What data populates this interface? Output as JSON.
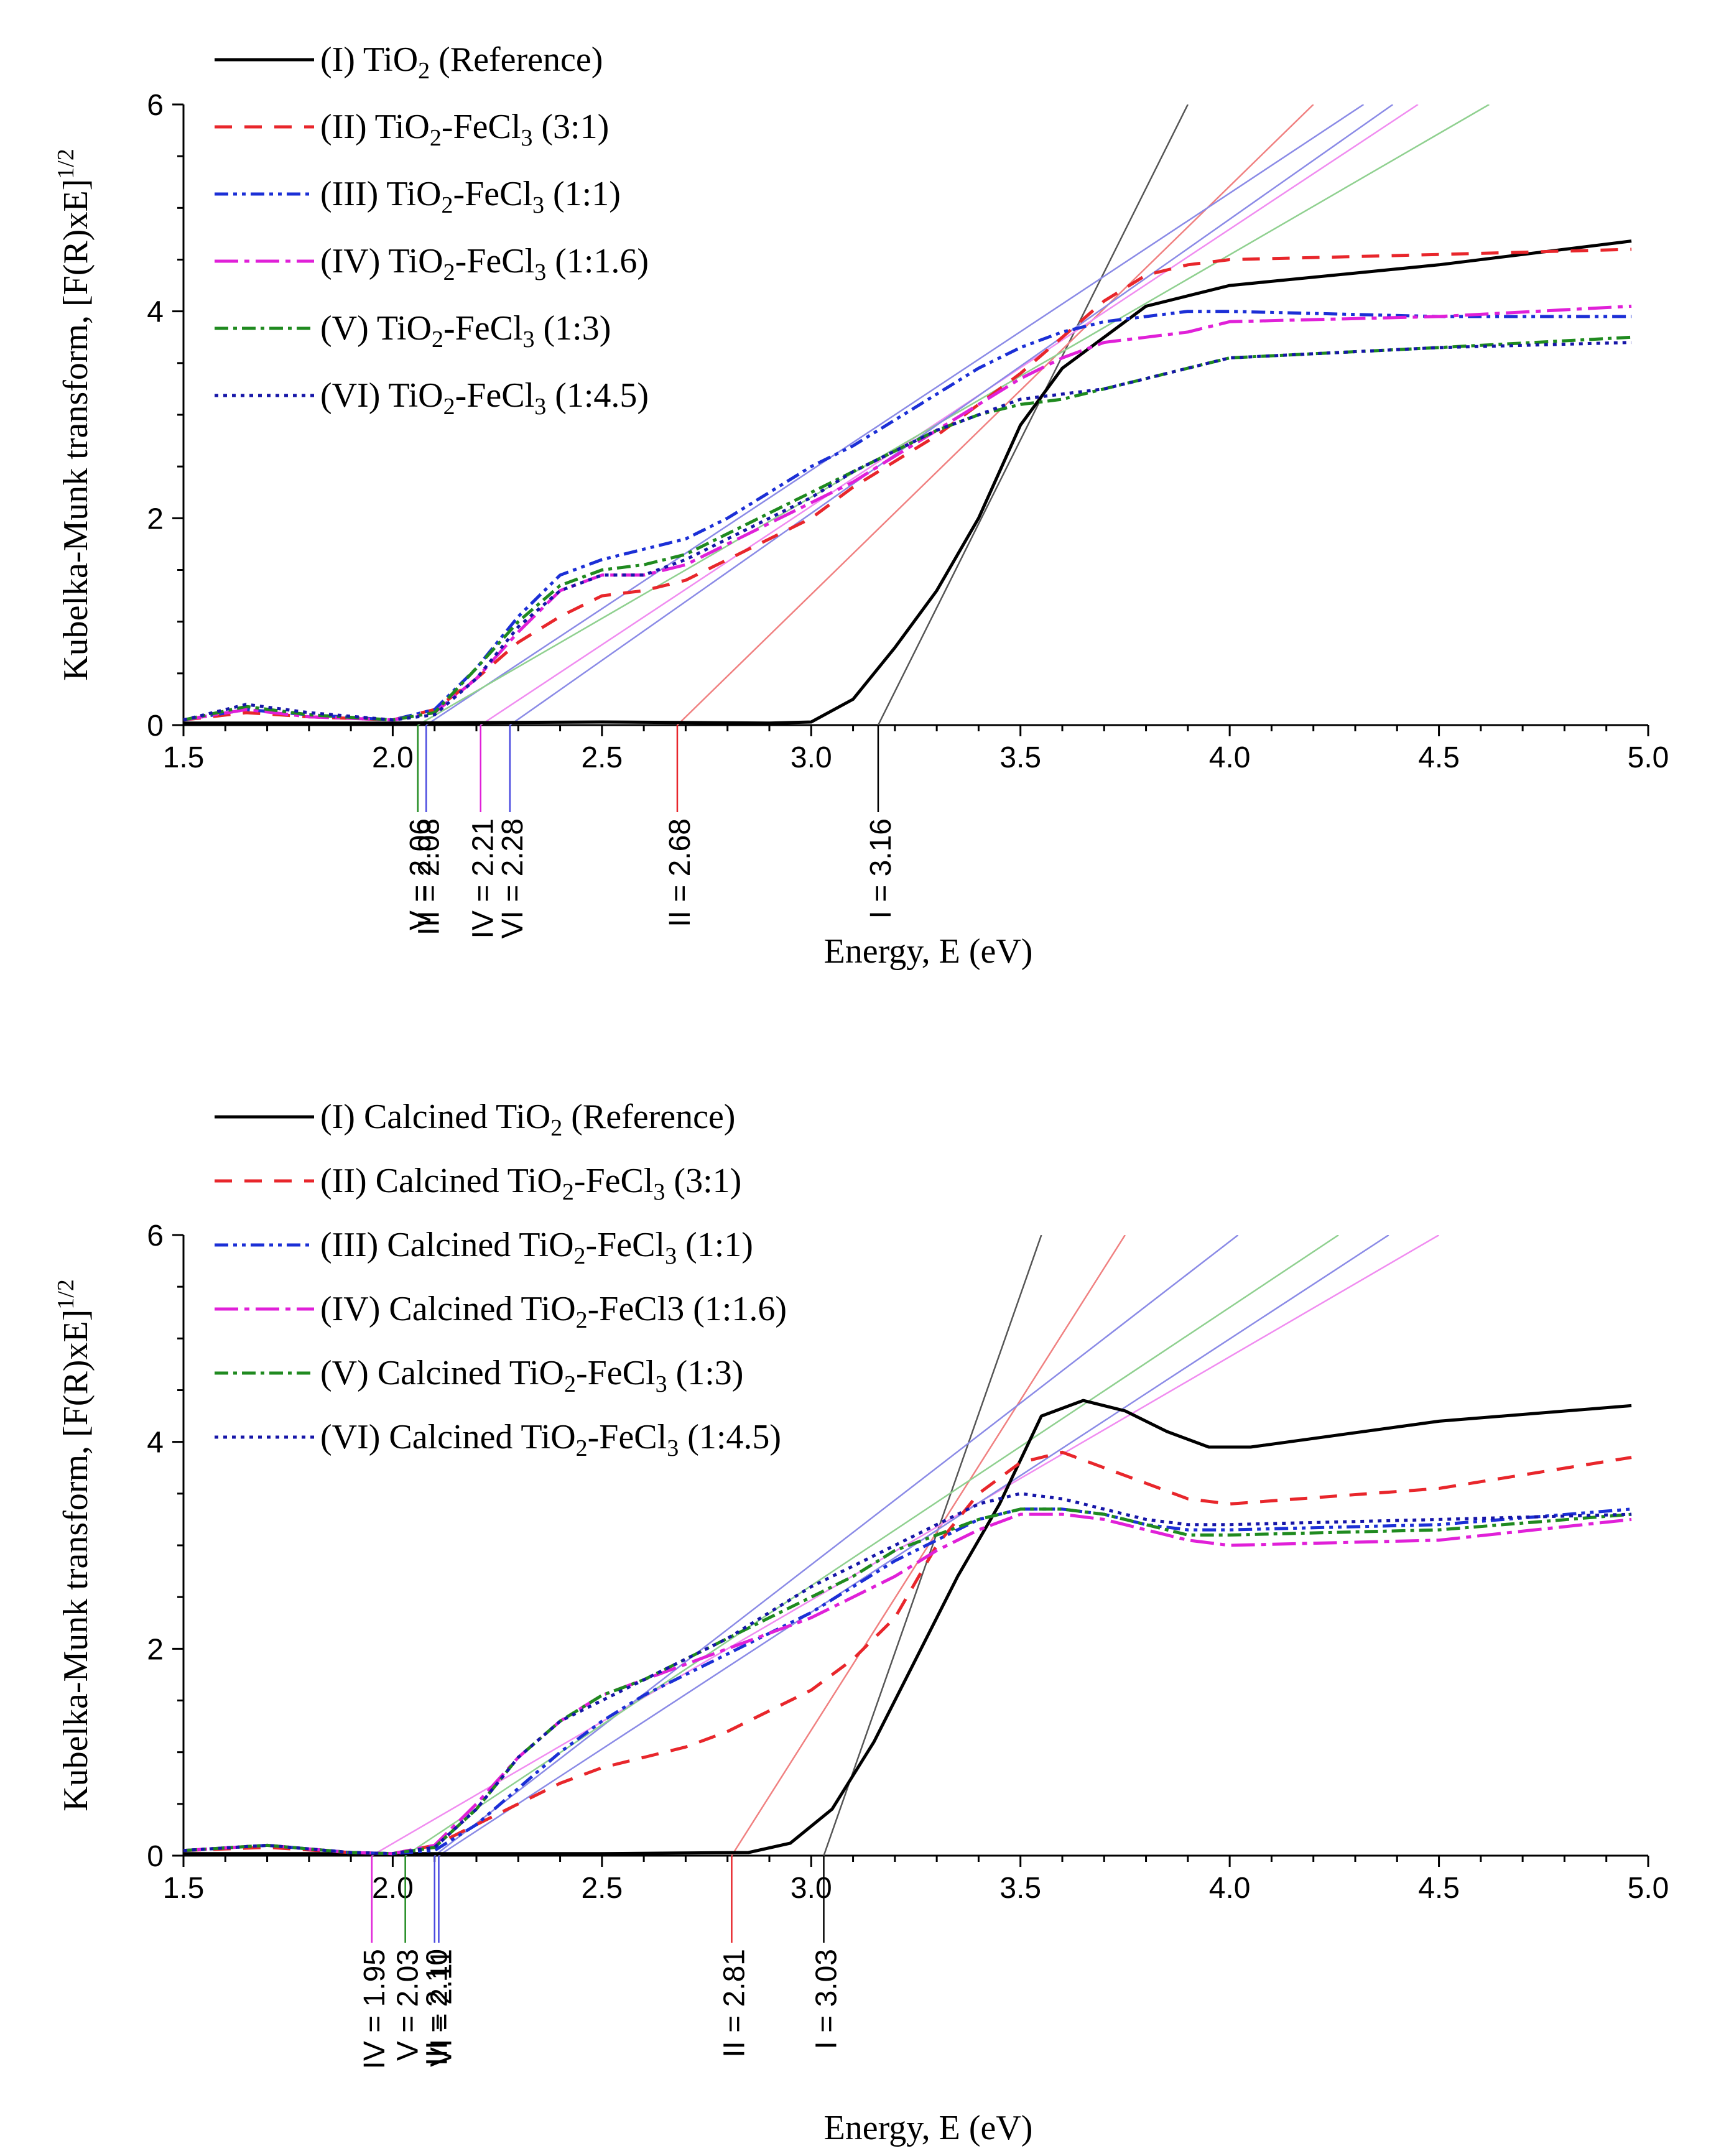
{
  "chart_data": [
    {
      "type": "line",
      "panel": "top",
      "title": "",
      "xlabel": "Energy, E (eV)",
      "ylabel": "Kubelka-Munk transform, [F(R)xE]",
      "ylabel_sup": "1/2",
      "xlim": [
        1.5,
        5.0
      ],
      "ylim": [
        0,
        6
      ],
      "xticks": [
        "1.5",
        "2.0",
        "2.5",
        "3.0",
        "3.5",
        "4.0",
        "4.5",
        "5.0"
      ],
      "xtick_values": [
        1.5,
        2.0,
        2.5,
        3.0,
        3.5,
        4.0,
        4.5,
        5.0
      ],
      "yticks": [
        "0",
        "2",
        "4",
        "6"
      ],
      "ytick_values": [
        0,
        2,
        4,
        6
      ],
      "legend_position": "top-left",
      "series": [
        {
          "id": "I",
          "name": [
            "(I) TiO",
            "2",
            " (Reference)"
          ],
          "color": "#000000",
          "dash": "",
          "width": 5,
          "x": [
            1.5,
            2.0,
            2.5,
            2.9,
            3.0,
            3.1,
            3.2,
            3.3,
            3.4,
            3.5,
            3.6,
            3.7,
            3.8,
            3.9,
            4.0,
            4.5,
            4.96
          ],
          "y": [
            0.02,
            0.02,
            0.03,
            0.02,
            0.03,
            0.25,
            0.75,
            1.3,
            2.0,
            2.9,
            3.45,
            3.75,
            4.05,
            4.15,
            4.25,
            4.45,
            4.68
          ]
        },
        {
          "id": "II",
          "name": [
            "(II) TiO",
            "2",
            "-FeCl",
            "3",
            " (3:1)"
          ],
          "color": "#e8262b",
          "dash": "28,20",
          "width": 5,
          "x": [
            1.5,
            1.65,
            1.8,
            2.0,
            2.1,
            2.2,
            2.3,
            2.4,
            2.5,
            2.6,
            2.7,
            2.8,
            2.9,
            3.0,
            3.1,
            3.2,
            3.3,
            3.4,
            3.5,
            3.6,
            3.7,
            3.8,
            3.9,
            4.0,
            4.5,
            4.96
          ],
          "y": [
            0.05,
            0.12,
            0.08,
            0.05,
            0.15,
            0.45,
            0.8,
            1.05,
            1.25,
            1.3,
            1.4,
            1.6,
            1.8,
            2.0,
            2.3,
            2.55,
            2.8,
            3.1,
            3.4,
            3.75,
            4.1,
            4.35,
            4.45,
            4.5,
            4.55,
            4.6
          ]
        },
        {
          "id": "III",
          "name": [
            "(III) TiO",
            "2",
            "-FeCl",
            "3",
            " (1:1)"
          ],
          "color": "#1b2fd6",
          "dash": "22,8,6,8,6,8",
          "width": 5,
          "x": [
            1.5,
            1.65,
            1.8,
            2.0,
            2.1,
            2.2,
            2.3,
            2.4,
            2.5,
            2.6,
            2.7,
            2.8,
            2.9,
            3.0,
            3.1,
            3.2,
            3.3,
            3.4,
            3.5,
            3.6,
            3.7,
            3.8,
            3.9,
            4.0,
            4.5,
            4.96
          ],
          "y": [
            0.05,
            0.15,
            0.1,
            0.05,
            0.15,
            0.55,
            1.05,
            1.45,
            1.6,
            1.7,
            1.8,
            2.0,
            2.25,
            2.5,
            2.7,
            2.95,
            3.2,
            3.45,
            3.65,
            3.8,
            3.9,
            3.95,
            4.0,
            4.0,
            3.95,
            3.95
          ]
        },
        {
          "id": "IV",
          "name": [
            "(IV) TiO",
            "2",
            "-FeCl",
            "3",
            " (1:1.6)"
          ],
          "color": "#e020d8",
          "dash": "38,10,8,10",
          "width": 5,
          "x": [
            1.5,
            1.65,
            1.8,
            2.0,
            2.1,
            2.2,
            2.3,
            2.4,
            2.5,
            2.6,
            2.7,
            2.8,
            2.9,
            3.0,
            3.1,
            3.2,
            3.3,
            3.4,
            3.5,
            3.6,
            3.7,
            3.8,
            3.9,
            4.0,
            4.5,
            4.96
          ],
          "y": [
            0.05,
            0.15,
            0.08,
            0.05,
            0.12,
            0.45,
            0.9,
            1.3,
            1.45,
            1.45,
            1.55,
            1.75,
            1.95,
            2.15,
            2.35,
            2.6,
            2.85,
            3.1,
            3.35,
            3.55,
            3.7,
            3.75,
            3.8,
            3.9,
            3.95,
            4.05
          ]
        },
        {
          "id": "V",
          "name": [
            "(V) TiO",
            "2",
            "-FeCl",
            "3",
            " (1:3)"
          ],
          "color": "#1f8a1f",
          "dash": "22,8,6,8",
          "width": 5,
          "x": [
            1.5,
            1.65,
            1.8,
            2.0,
            2.1,
            2.2,
            2.3,
            2.4,
            2.5,
            2.6,
            2.7,
            2.8,
            2.9,
            3.0,
            3.1,
            3.2,
            3.3,
            3.4,
            3.5,
            3.6,
            3.7,
            3.8,
            3.9,
            4.0,
            4.5,
            4.96
          ],
          "y": [
            0.05,
            0.18,
            0.1,
            0.05,
            0.12,
            0.55,
            1.0,
            1.35,
            1.5,
            1.55,
            1.65,
            1.85,
            2.05,
            2.25,
            2.45,
            2.65,
            2.85,
            3.0,
            3.1,
            3.15,
            3.25,
            3.35,
            3.45,
            3.55,
            3.65,
            3.75
          ]
        },
        {
          "id": "VI",
          "name": [
            "(VI) TiO",
            "2",
            "-FeCl",
            "3",
            " (1:4.5)"
          ],
          "color": "#1616a8",
          "dash": "6,8",
          "width": 5,
          "x": [
            1.5,
            1.65,
            1.8,
            2.0,
            2.1,
            2.2,
            2.3,
            2.4,
            2.5,
            2.6,
            2.7,
            2.8,
            2.9,
            3.0,
            3.1,
            3.2,
            3.3,
            3.4,
            3.5,
            3.6,
            3.7,
            3.8,
            3.9,
            4.0,
            4.5,
            4.96
          ],
          "y": [
            0.05,
            0.2,
            0.12,
            0.05,
            0.1,
            0.45,
            0.95,
            1.3,
            1.45,
            1.45,
            1.6,
            1.8,
            2.0,
            2.2,
            2.45,
            2.65,
            2.85,
            3.0,
            3.15,
            3.2,
            3.25,
            3.35,
            3.45,
            3.55,
            3.65,
            3.7
          ]
        }
      ],
      "tangents": [
        {
          "id": "I",
          "x0": 3.16,
          "x1": 3.9,
          "y1": 6.0,
          "color": "#555555"
        },
        {
          "id": "II",
          "x0": 2.68,
          "x1": 4.2,
          "y1": 6.0,
          "color": "#f08080"
        },
        {
          "id": "III",
          "x0": 2.08,
          "x1": 4.32,
          "y1": 6.0,
          "color": "#8a8ae6"
        },
        {
          "id": "IV",
          "x0": 2.21,
          "x1": 4.45,
          "y1": 6.0,
          "color": "#f08cf0"
        },
        {
          "id": "V",
          "x0": 2.06,
          "x1": 4.62,
          "y1": 6.0,
          "color": "#8fd08f"
        },
        {
          "id": "VI",
          "x0": 2.28,
          "x1": 4.39,
          "y1": 6.0,
          "color": "#8a8ae6"
        }
      ],
      "bandgaps": [
        {
          "label": "V = 2.06",
          "value": 2.06,
          "color": "#1f8a1f"
        },
        {
          "label": "III = 2.08",
          "value": 2.08,
          "color": "#4a4ae0"
        },
        {
          "label": "IV = 2.21",
          "value": 2.21,
          "color": "#e020d8"
        },
        {
          "label": "VI = 2.28",
          "value": 2.28,
          "color": "#4a4ae0"
        },
        {
          "label": "II = 2.68",
          "value": 2.68,
          "color": "#e8262b"
        },
        {
          "label": "I = 3.16",
          "value": 3.16,
          "color": "#000000"
        }
      ]
    },
    {
      "type": "line",
      "panel": "bottom",
      "title": "",
      "xlabel": "Energy, E (eV)",
      "ylabel": "Kubelka-Munk transform, [F(R)xE]",
      "ylabel_sup": "1/2",
      "xlim": [
        1.5,
        5.0
      ],
      "ylim": [
        0,
        6
      ],
      "xticks": [
        "1.5",
        "2.0",
        "2.5",
        "3.0",
        "3.5",
        "4.0",
        "4.5",
        "5.0"
      ],
      "xtick_values": [
        1.5,
        2.0,
        2.5,
        3.0,
        3.5,
        4.0,
        4.5,
        5.0
      ],
      "yticks": [
        "0",
        "2",
        "4",
        "6"
      ],
      "ytick_values": [
        0,
        2,
        4,
        6
      ],
      "legend_position": "top-left",
      "series": [
        {
          "id": "I",
          "name": [
            "(I) Calcined TiO",
            "2",
            " (Reference)"
          ],
          "color": "#000000",
          "dash": "",
          "width": 5,
          "x": [
            1.5,
            2.0,
            2.5,
            2.85,
            2.95,
            3.05,
            3.15,
            3.25,
            3.35,
            3.45,
            3.55,
            3.65,
            3.75,
            3.85,
            3.95,
            4.05,
            4.5,
            4.96
          ],
          "y": [
            0.02,
            0.02,
            0.02,
            0.03,
            0.12,
            0.45,
            1.1,
            1.9,
            2.7,
            3.4,
            4.25,
            4.4,
            4.3,
            4.1,
            3.95,
            3.95,
            4.2,
            4.35
          ]
        },
        {
          "id": "II",
          "name": [
            "(II) Calcined TiO",
            "2",
            "-FeCl",
            "3",
            " (3:1)"
          ],
          "color": "#e8262b",
          "dash": "28,20",
          "width": 5,
          "x": [
            1.5,
            1.7,
            1.9,
            2.0,
            2.1,
            2.2,
            2.3,
            2.4,
            2.5,
            2.6,
            2.7,
            2.8,
            2.9,
            3.0,
            3.1,
            3.2,
            3.3,
            3.4,
            3.5,
            3.6,
            3.7,
            3.8,
            3.9,
            4.0,
            4.5,
            4.96
          ],
          "y": [
            0.05,
            0.08,
            0.03,
            0.02,
            0.1,
            0.3,
            0.5,
            0.7,
            0.85,
            0.95,
            1.05,
            1.2,
            1.4,
            1.6,
            1.9,
            2.3,
            3.0,
            3.5,
            3.8,
            3.9,
            3.75,
            3.6,
            3.45,
            3.4,
            3.55,
            3.85
          ]
        },
        {
          "id": "III",
          "name": [
            "(III) Calcined TiO",
            "2",
            "-FeCl",
            "3",
            " (1:1)"
          ],
          "color": "#1b2fd6",
          "dash": "22,8,6,8,6,8",
          "width": 5,
          "x": [
            1.5,
            1.7,
            1.9,
            2.0,
            2.1,
            2.2,
            2.3,
            2.4,
            2.5,
            2.6,
            2.7,
            2.8,
            2.9,
            3.0,
            3.1,
            3.2,
            3.3,
            3.4,
            3.5,
            3.6,
            3.7,
            3.8,
            3.9,
            4.0,
            4.5,
            4.96
          ],
          "y": [
            0.05,
            0.1,
            0.03,
            0.02,
            0.05,
            0.3,
            0.65,
            1.0,
            1.3,
            1.55,
            1.75,
            1.95,
            2.15,
            2.35,
            2.6,
            2.85,
            3.05,
            3.25,
            3.35,
            3.35,
            3.3,
            3.2,
            3.15,
            3.15,
            3.2,
            3.35
          ]
        },
        {
          "id": "IV",
          "name": [
            "(IV) Calcined TiO",
            "2",
            "-FeCl3 (1:1.6)"
          ],
          "color": "#e020d8",
          "dash": "38,10,8,10",
          "width": 5,
          "x": [
            1.5,
            1.7,
            1.9,
            2.0,
            2.1,
            2.2,
            2.3,
            2.4,
            2.5,
            2.6,
            2.7,
            2.8,
            2.9,
            3.0,
            3.1,
            3.2,
            3.3,
            3.4,
            3.5,
            3.6,
            3.7,
            3.8,
            3.9,
            4.0,
            4.5,
            4.96
          ],
          "y": [
            0.05,
            0.1,
            0.03,
            0.02,
            0.1,
            0.5,
            0.95,
            1.3,
            1.55,
            1.7,
            1.85,
            2.0,
            2.15,
            2.3,
            2.5,
            2.7,
            2.95,
            3.15,
            3.3,
            3.3,
            3.25,
            3.15,
            3.05,
            3.0,
            3.05,
            3.25
          ]
        },
        {
          "id": "V",
          "name": [
            "(V) Calcined TiO",
            "2",
            "-FeCl",
            "3",
            " (1:3)"
          ],
          "color": "#1f8a1f",
          "dash": "22,8,6,8",
          "width": 5,
          "x": [
            1.5,
            1.7,
            1.9,
            2.0,
            2.1,
            2.2,
            2.3,
            2.4,
            2.5,
            2.6,
            2.7,
            2.8,
            2.9,
            3.0,
            3.1,
            3.2,
            3.3,
            3.4,
            3.5,
            3.6,
            3.7,
            3.8,
            3.9,
            4.0,
            4.5,
            4.96
          ],
          "y": [
            0.05,
            0.1,
            0.03,
            0.02,
            0.08,
            0.45,
            0.95,
            1.3,
            1.55,
            1.7,
            1.9,
            2.1,
            2.3,
            2.5,
            2.7,
            2.95,
            3.1,
            3.25,
            3.35,
            3.35,
            3.3,
            3.2,
            3.1,
            3.1,
            3.15,
            3.3
          ]
        },
        {
          "id": "VI",
          "name": [
            "(VI) Calcined TiO",
            "2",
            "-FeCl",
            "3",
            " (1:4.5)"
          ],
          "color": "#1616a8",
          "dash": "6,8",
          "width": 5,
          "x": [
            1.5,
            1.7,
            1.9,
            2.0,
            2.1,
            2.2,
            2.3,
            2.4,
            2.5,
            2.6,
            2.7,
            2.8,
            2.9,
            3.0,
            3.1,
            3.2,
            3.3,
            3.4,
            3.5,
            3.6,
            3.7,
            3.8,
            3.9,
            4.0,
            4.5,
            4.96
          ],
          "y": [
            0.05,
            0.1,
            0.03,
            0.02,
            0.08,
            0.45,
            0.95,
            1.3,
            1.5,
            1.7,
            1.9,
            2.1,
            2.35,
            2.6,
            2.8,
            3.0,
            3.2,
            3.4,
            3.5,
            3.45,
            3.35,
            3.25,
            3.2,
            3.2,
            3.25,
            3.3
          ]
        }
      ],
      "tangents": [
        {
          "id": "I",
          "x0": 3.03,
          "x1": 3.55,
          "y1": 6.0,
          "color": "#555555"
        },
        {
          "id": "II",
          "x0": 2.81,
          "x1": 3.75,
          "y1": 6.0,
          "color": "#f08080"
        },
        {
          "id": "III",
          "x0": 2.1,
          "x1": 4.02,
          "y1": 6.0,
          "color": "#8a8ae6"
        },
        {
          "id": "IV",
          "x0": 1.95,
          "x1": 4.5,
          "y1": 6.0,
          "color": "#f08cf0"
        },
        {
          "id": "V",
          "x0": 2.03,
          "x1": 4.26,
          "y1": 6.0,
          "color": "#8fd08f"
        },
        {
          "id": "VI",
          "x0": 2.11,
          "x1": 4.38,
          "y1": 6.0,
          "color": "#8a8ae6"
        }
      ],
      "bandgaps": [
        {
          "label": "IV = 1.95",
          "value": 1.95,
          "color": "#e020d8"
        },
        {
          "label": "V = 2.03",
          "value": 2.03,
          "color": "#1f8a1f"
        },
        {
          "label": "III = 2.10",
          "value": 2.1,
          "color": "#4a4ae0"
        },
        {
          "label": "VI = 2.11",
          "value": 2.11,
          "color": "#4a4ae0"
        },
        {
          "label": "II = 2.81",
          "value": 2.81,
          "color": "#e8262b"
        },
        {
          "label": "I = 3.03",
          "value": 3.03,
          "color": "#000000"
        }
      ]
    }
  ]
}
